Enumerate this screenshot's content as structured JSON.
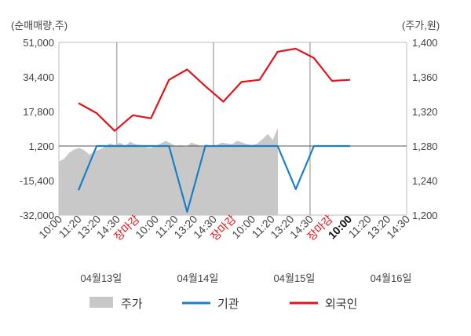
{
  "chart_data": {
    "type": "line",
    "left_unit_label": "(순매매량,주)",
    "right_unit_label": "(주가,원)",
    "y_left": {
      "min": -32000,
      "max": 51000,
      "ticks": [
        "51,000",
        "34,400",
        "17,800",
        "1,200",
        "-15,400",
        "-32,000"
      ],
      "tick_values": [
        51000,
        34400,
        17800,
        1200,
        -15400,
        -32000
      ]
    },
    "y_right": {
      "min": 1200,
      "max": 1400,
      "ticks": [
        "1,400",
        "1,360",
        "1,320",
        "1,280",
        "1,240",
        "1,200"
      ],
      "tick_values": [
        1400,
        1360,
        1320,
        1280,
        1240,
        1200
      ]
    },
    "x_tick_labels": [
      {
        "label": "10:00",
        "style": "normal"
      },
      {
        "label": "11:20",
        "style": "normal"
      },
      {
        "label": "13:20",
        "style": "normal"
      },
      {
        "label": "14:30",
        "style": "normal"
      },
      {
        "label": "장마감",
        "style": "close"
      },
      {
        "label": "10:00",
        "style": "normal"
      },
      {
        "label": "11:20",
        "style": "normal"
      },
      {
        "label": "13:20",
        "style": "normal"
      },
      {
        "label": "14:30",
        "style": "normal"
      },
      {
        "label": "장마감",
        "style": "close"
      },
      {
        "label": "10:00",
        "style": "normal"
      },
      {
        "label": "11:20",
        "style": "normal"
      },
      {
        "label": "13:20",
        "style": "normal"
      },
      {
        "label": "14:30",
        "style": "normal"
      },
      {
        "label": "장마감",
        "style": "close"
      },
      {
        "label": "10:00",
        "style": "bold"
      },
      {
        "label": "11:20",
        "style": "normal"
      },
      {
        "label": "13:20",
        "style": "normal"
      },
      {
        "label": "14:30",
        "style": "normal"
      }
    ],
    "day_labels": [
      "04월13일",
      "04월14일",
      "04월15일",
      "04월16일"
    ],
    "series": [
      {
        "name": "기관",
        "axis": "left",
        "color": "#1a7fc4",
        "values": [
          -20000,
          1200,
          1200,
          1200,
          1200,
          1200,
          -30500,
          1200,
          1200,
          1200,
          1200,
          1200,
          -19500,
          1200,
          1200,
          1200
        ]
      },
      {
        "name": "외국인",
        "axis": "left",
        "color": "#e0141b",
        "values": [
          21800,
          17000,
          8500,
          16000,
          14500,
          33000,
          38000,
          30000,
          22500,
          32000,
          33000,
          46500,
          48000,
          43500,
          32500,
          33000
        ]
      },
      {
        "name": "주가",
        "axis": "right",
        "color": "#c8c8c8",
        "type": "area",
        "values": [
          1262,
          1265,
          1272,
          1276,
          1278,
          1275,
          1270,
          1274,
          1276,
          1279,
          1283,
          1281,
          1284,
          1280,
          1285,
          1282,
          1281,
          1279,
          1278,
          1280,
          1283,
          1286,
          1283,
          1280,
          1281,
          1279,
          1284,
          1282,
          1280,
          1282,
          1279,
          1281,
          1284,
          1283,
          1282,
          1286,
          1284,
          1282,
          1281,
          1283,
          1288,
          1294,
          1287,
          1301
        ]
      }
    ],
    "legend": [
      {
        "name": "주가",
        "color": "#c8c8c8",
        "kind": "box"
      },
      {
        "name": "기관",
        "color": "#1a7fc4",
        "kind": "line"
      },
      {
        "name": "외국인",
        "color": "#e0141b",
        "kind": "line"
      }
    ],
    "legend_position": "bottom",
    "grid": false
  }
}
